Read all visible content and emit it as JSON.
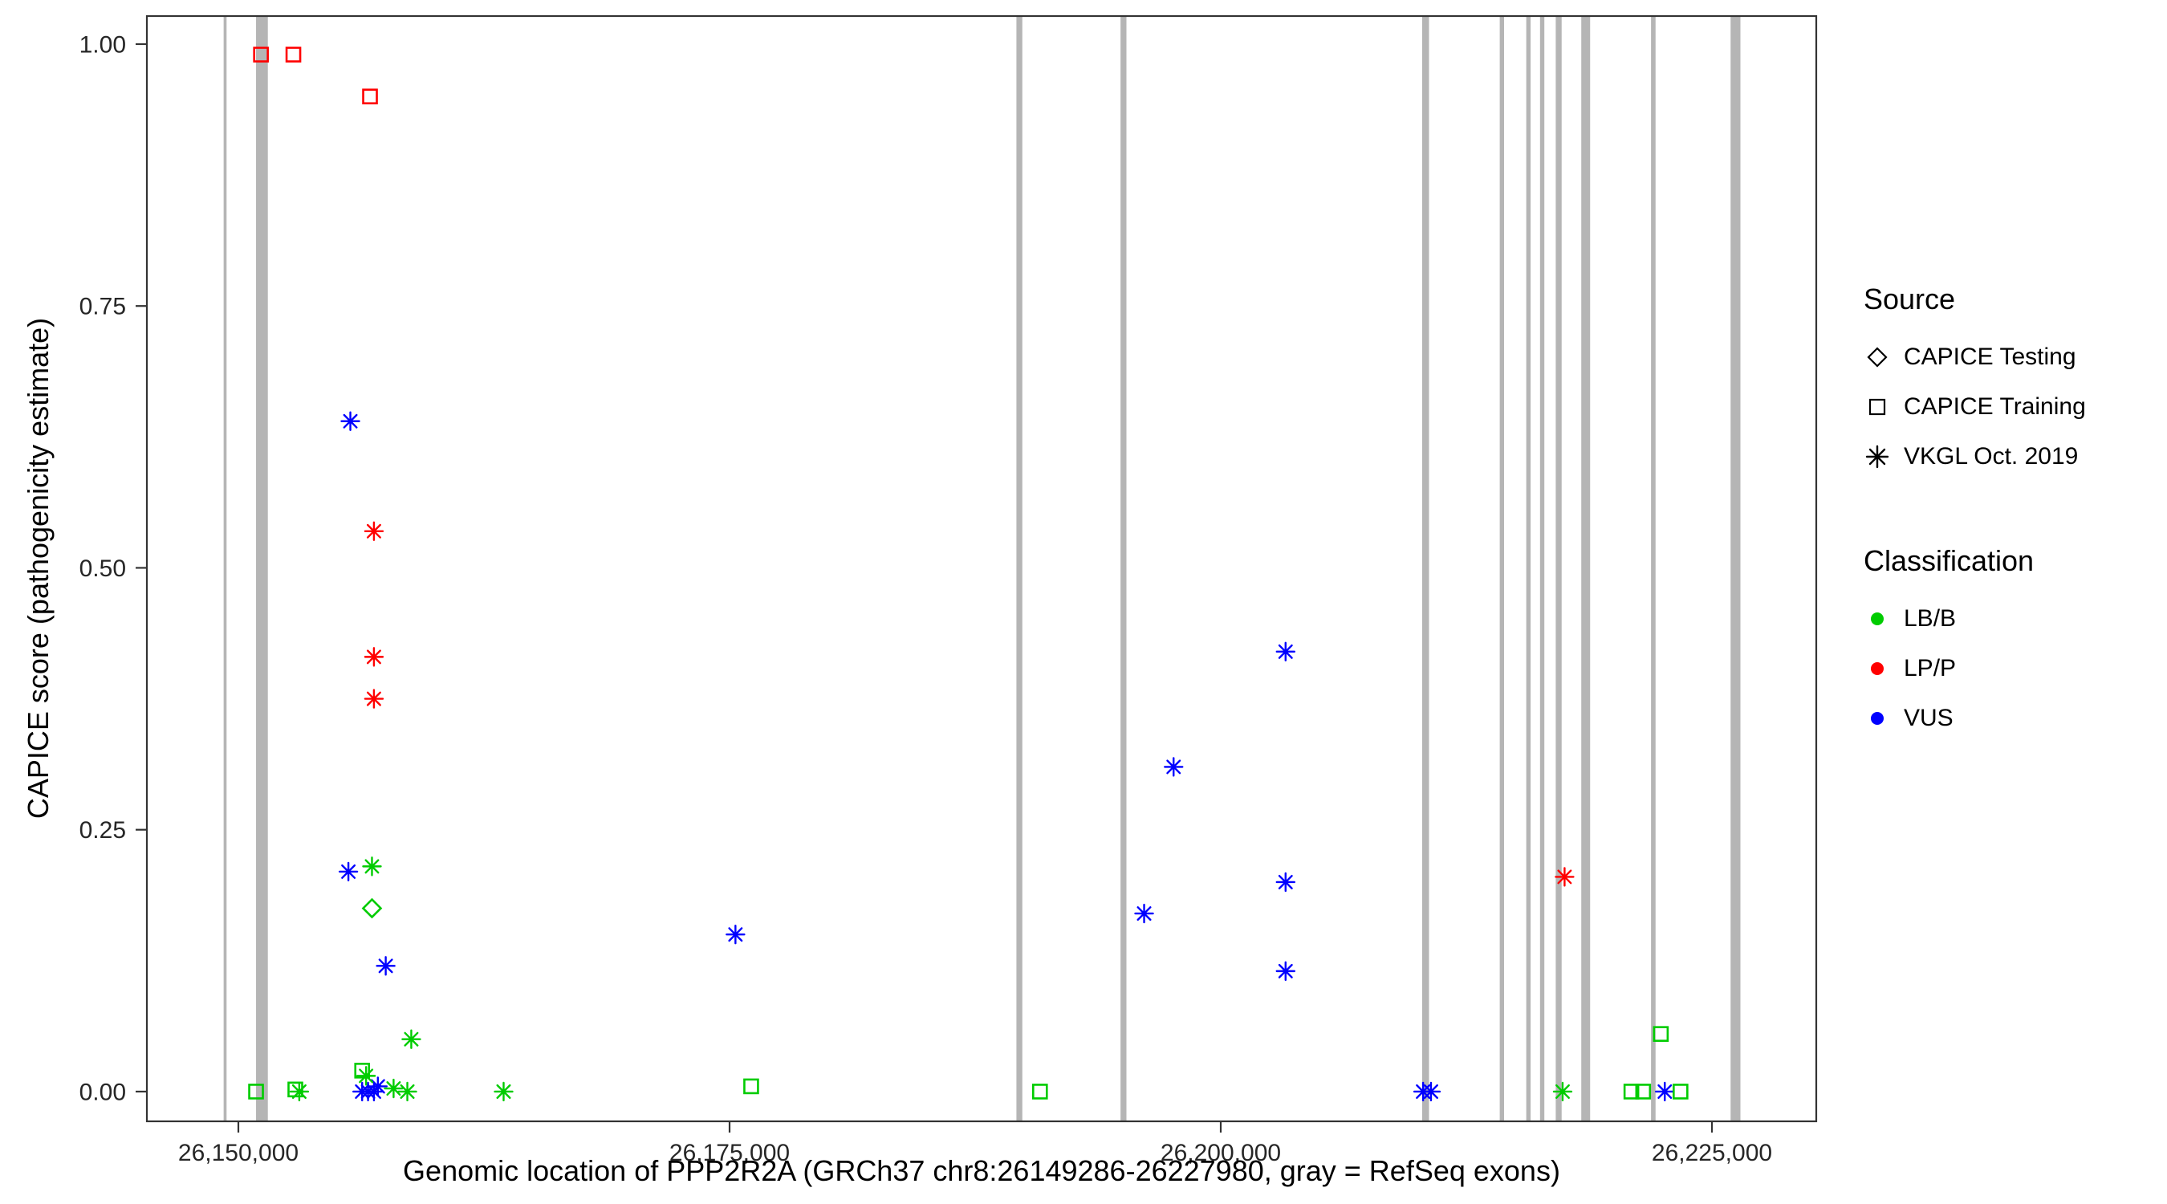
{
  "figure": {
    "xlabel": "Genomic location of PPP2R2A (GRCh37 chr8:26149286-26227980, gray = RefSeq exons)",
    "ylabel": "CAPICE score (pathogenicity estimate)"
  },
  "legend": {
    "source": {
      "title": "Source",
      "items": [
        {
          "shape": "diamond",
          "label": "CAPICE Testing"
        },
        {
          "shape": "square",
          "label": "CAPICE Training"
        },
        {
          "shape": "asterisk",
          "label": "VKGL Oct. 2019"
        }
      ]
    },
    "classification": {
      "title": "Classification",
      "items": [
        {
          "color": "#00cc00",
          "label": "LB/B"
        },
        {
          "color": "#ff0000",
          "label": "LP/P"
        },
        {
          "color": "#0000ff",
          "label": "VUS"
        }
      ]
    }
  },
  "chart_data": {
    "type": "scatter",
    "title": "",
    "xlabel": "Genomic location of PPP2R2A (GRCh37 chr8:26149286-26227980, gray = RefSeq exons)",
    "ylabel": "CAPICE score (pathogenicity estimate)",
    "xlim": [
      26145343,
      26230310
    ],
    "ylim": [
      -0.0284,
      1.0268
    ],
    "grid": false,
    "legend_position": "right",
    "x_ticks": [
      {
        "value": 26150000,
        "label": "26,150,000"
      },
      {
        "value": 26175000,
        "label": "26,175,000"
      },
      {
        "value": 26200000,
        "label": "26,200,000"
      },
      {
        "value": 26225000,
        "label": "26,225,000"
      }
    ],
    "y_ticks": [
      {
        "value": 0.0,
        "label": "0.00"
      },
      {
        "value": 0.25,
        "label": "0.25"
      },
      {
        "value": 0.5,
        "label": "0.50"
      },
      {
        "value": 0.75,
        "label": "0.75"
      },
      {
        "value": 1.0,
        "label": "1.00"
      }
    ],
    "exon_color": "#b5b5b5",
    "class_colors": {
      "LB/B": "#00cc00",
      "LP/P": "#ff0000",
      "VUS": "#0000ff"
    },
    "shape_by_source": {
      "CAPICE Testing": "diamond",
      "CAPICE Training": "square",
      "VKGL Oct. 2019": "asterisk"
    },
    "exons": [
      [
        26149250,
        26149400
      ],
      [
        26150900,
        26151500
      ],
      [
        26189600,
        26189900
      ],
      [
        26194900,
        26195200
      ],
      [
        26210250,
        26210600
      ],
      [
        26214200,
        26214420
      ],
      [
        26215550,
        26215770
      ],
      [
        26216250,
        26216470
      ],
      [
        26217050,
        26217350
      ],
      [
        26218350,
        26218800
      ],
      [
        26221900,
        26222130
      ],
      [
        26225950,
        26226450
      ]
    ],
    "points": [
      {
        "x": 26151150,
        "y": 0.99,
        "source": "CAPICE Training",
        "classification": "LP/P"
      },
      {
        "x": 26152800,
        "y": 0.99,
        "source": "CAPICE Training",
        "classification": "LP/P"
      },
      {
        "x": 26156700,
        "y": 0.95,
        "source": "CAPICE Training",
        "classification": "LP/P"
      },
      {
        "x": 26156900,
        "y": 0.535,
        "source": "VKGL Oct. 2019",
        "classification": "LP/P"
      },
      {
        "x": 26156900,
        "y": 0.415,
        "source": "VKGL Oct. 2019",
        "classification": "LP/P"
      },
      {
        "x": 26156900,
        "y": 0.375,
        "source": "VKGL Oct. 2019",
        "classification": "LP/P"
      },
      {
        "x": 26217500,
        "y": 0.205,
        "source": "VKGL Oct. 2019",
        "classification": "LP/P"
      },
      {
        "x": 26155700,
        "y": 0.64,
        "source": "VKGL Oct. 2019",
        "classification": "VUS"
      },
      {
        "x": 26155600,
        "y": 0.21,
        "source": "VKGL Oct. 2019",
        "classification": "VUS"
      },
      {
        "x": 26157500,
        "y": 0.12,
        "source": "VKGL Oct. 2019",
        "classification": "VUS"
      },
      {
        "x": 26175300,
        "y": 0.15,
        "source": "VKGL Oct. 2019",
        "classification": "VUS"
      },
      {
        "x": 26196100,
        "y": 0.17,
        "source": "VKGL Oct. 2019",
        "classification": "VUS"
      },
      {
        "x": 26197600,
        "y": 0.31,
        "source": "VKGL Oct. 2019",
        "classification": "VUS"
      },
      {
        "x": 26203300,
        "y": 0.42,
        "source": "VKGL Oct. 2019",
        "classification": "VUS"
      },
      {
        "x": 26203300,
        "y": 0.2,
        "source": "VKGL Oct. 2019",
        "classification": "VUS"
      },
      {
        "x": 26203300,
        "y": 0.115,
        "source": "VKGL Oct. 2019",
        "classification": "VUS"
      },
      {
        "x": 26156300,
        "y": 0.0,
        "source": "VKGL Oct. 2019",
        "classification": "VUS"
      },
      {
        "x": 26156600,
        "y": 0.0,
        "source": "VKGL Oct. 2019",
        "classification": "VUS"
      },
      {
        "x": 26156900,
        "y": 0.0,
        "source": "VKGL Oct. 2019",
        "classification": "VUS"
      },
      {
        "x": 26157100,
        "y": 0.005,
        "source": "VKGL Oct. 2019",
        "classification": "VUS"
      },
      {
        "x": 26210300,
        "y": 0.0,
        "source": "VKGL Oct. 2019",
        "classification": "VUS"
      },
      {
        "x": 26210700,
        "y": 0.0,
        "source": "VKGL Oct. 2019",
        "classification": "VUS"
      },
      {
        "x": 26222600,
        "y": 0.0,
        "source": "VKGL Oct. 2019",
        "classification": "VUS"
      },
      {
        "x": 26156800,
        "y": 0.215,
        "source": "VKGL Oct. 2019",
        "classification": "LB/B"
      },
      {
        "x": 26158800,
        "y": 0.05,
        "source": "VKGL Oct. 2019",
        "classification": "LB/B"
      },
      {
        "x": 26153100,
        "y": 0.0,
        "source": "VKGL Oct. 2019",
        "classification": "LB/B"
      },
      {
        "x": 26156500,
        "y": 0.015,
        "source": "VKGL Oct. 2019",
        "classification": "LB/B"
      },
      {
        "x": 26157900,
        "y": 0.003,
        "source": "VKGL Oct. 2019",
        "classification": "LB/B"
      },
      {
        "x": 26158600,
        "y": 0.0,
        "source": "VKGL Oct. 2019",
        "classification": "LB/B"
      },
      {
        "x": 26163500,
        "y": 0.0,
        "source": "VKGL Oct. 2019",
        "classification": "LB/B"
      },
      {
        "x": 26217400,
        "y": 0.0,
        "source": "VKGL Oct. 2019",
        "classification": "LB/B"
      },
      {
        "x": 26156800,
        "y": 0.175,
        "source": "CAPICE Testing",
        "classification": "LB/B"
      },
      {
        "x": 26150900,
        "y": 0.0,
        "source": "CAPICE Training",
        "classification": "LB/B"
      },
      {
        "x": 26152900,
        "y": 0.002,
        "source": "CAPICE Training",
        "classification": "LB/B"
      },
      {
        "x": 26156300,
        "y": 0.02,
        "source": "CAPICE Training",
        "classification": "LB/B"
      },
      {
        "x": 26176100,
        "y": 0.005,
        "source": "CAPICE Training",
        "classification": "LB/B"
      },
      {
        "x": 26190800,
        "y": 0.0,
        "source": "CAPICE Training",
        "classification": "LB/B"
      },
      {
        "x": 26220900,
        "y": 0.0,
        "source": "CAPICE Training",
        "classification": "LB/B"
      },
      {
        "x": 26221500,
        "y": 0.0,
        "source": "CAPICE Training",
        "classification": "LB/B"
      },
      {
        "x": 26222400,
        "y": 0.055,
        "source": "CAPICE Training",
        "classification": "LB/B"
      },
      {
        "x": 26223400,
        "y": 0.0,
        "source": "CAPICE Training",
        "classification": "LB/B"
      }
    ]
  }
}
